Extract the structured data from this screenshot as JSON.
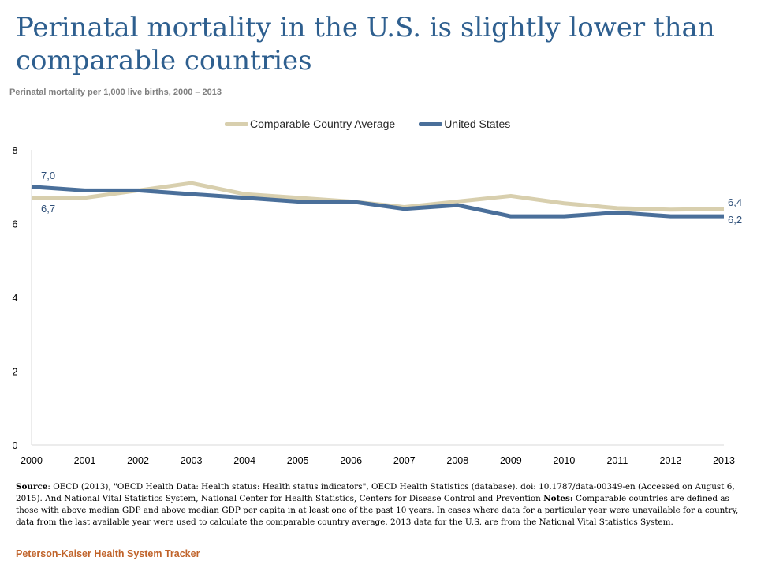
{
  "page": {
    "title": "Perinatal mortality in the U.S. is slightly lower than comparable countries",
    "subtitle": "Perinatal mortality per 1,000 live births, 2000 – 2013",
    "source_label": "Source",
    "source_text": ": OECD (2013), \"OECD Health Data: Health status: Health status indicators\", OECD Health Statistics (database). doi: 10.1787/data-00349-en (Accessed on August 6, 2015). And National Vital Statistics System, National Center for Health Statistics, Centers for Disease Control and Prevention ",
    "notes_label": "Notes:",
    "notes_text": " Comparable countries are defined as those with above median GDP and above median GDP per capita in at least one of the past 10 years. In cases where data for a particular year were unavailable for a country, data from the last available year were used to calculate the comparable country average. 2013 data for the U.S. are from the National Vital Statistics System.",
    "footer": "Peterson-Kaiser Health System Tracker"
  },
  "chart_data": {
    "type": "line",
    "title": "Perinatal mortality in the U.S. is slightly lower than comparable countries",
    "subtitle": "Perinatal mortality per 1,000 live births, 2000 – 2013",
    "x": [
      "2000",
      "2001",
      "2002",
      "2003",
      "2004",
      "2005",
      "2006",
      "2007",
      "2008",
      "2009",
      "2010",
      "2011",
      "2012",
      "2013"
    ],
    "ylim": [
      0,
      8
    ],
    "yticks": [
      0,
      2,
      4,
      6,
      8
    ],
    "grid": false,
    "legend_position": "top",
    "series": [
      {
        "name": "Comparable Country Average",
        "color": "#d8cfae",
        "values": [
          6.7,
          6.7,
          6.9,
          7.1,
          6.8,
          6.7,
          6.6,
          6.45,
          6.6,
          6.75,
          6.55,
          6.42,
          6.38,
          6.4
        ],
        "labels": [
          {
            "index": 0,
            "text": "6,7",
            "position": "below"
          },
          {
            "index": 13,
            "text": "6,4",
            "position": "above"
          }
        ]
      },
      {
        "name": "United States",
        "color": "#4a6f9a",
        "values": [
          7.0,
          6.9,
          6.9,
          6.8,
          6.7,
          6.6,
          6.6,
          6.4,
          6.5,
          6.2,
          6.2,
          6.3,
          6.2,
          6.2
        ],
        "labels": [
          {
            "index": 0,
            "text": "7,0",
            "position": "above"
          },
          {
            "index": 13,
            "text": "6,2",
            "position": "below"
          }
        ]
      }
    ]
  }
}
